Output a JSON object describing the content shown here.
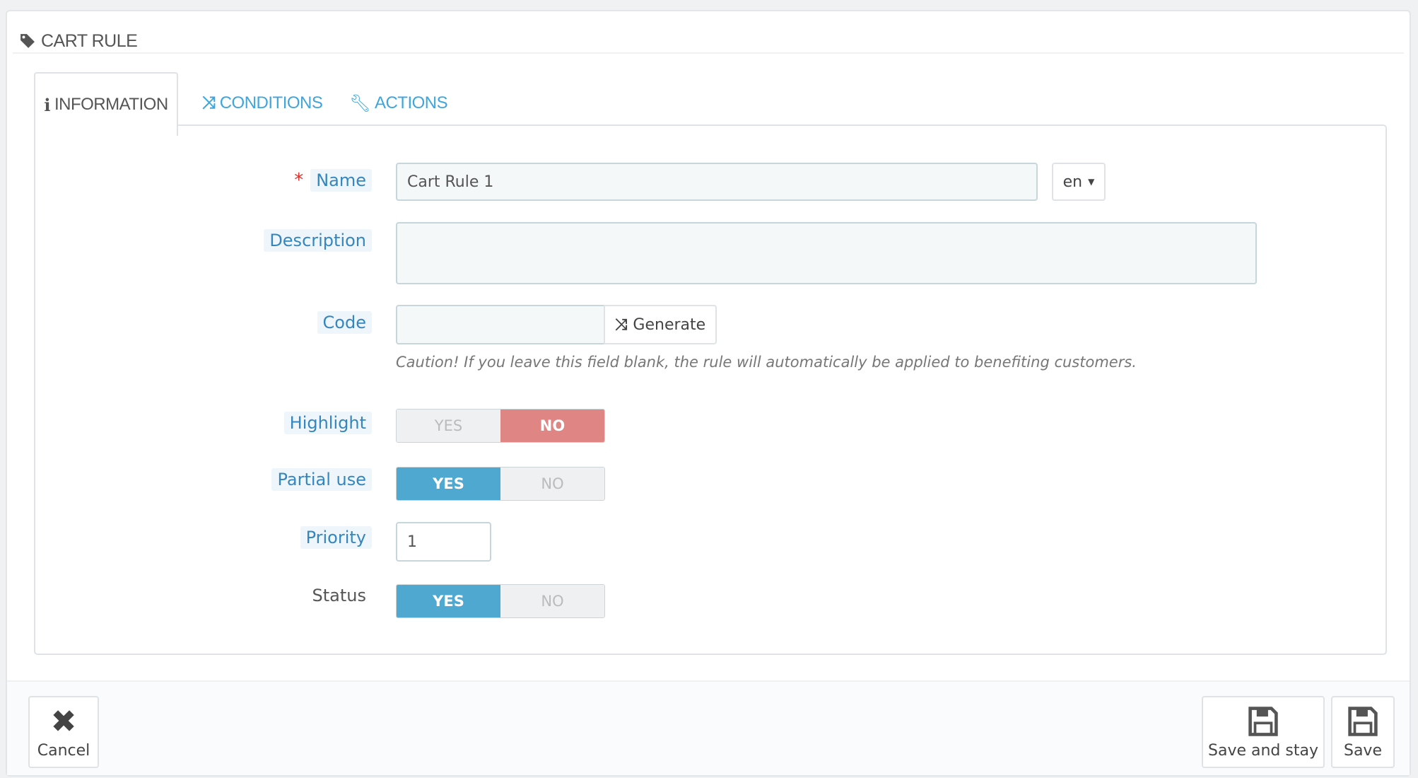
{
  "panel": {
    "title": "CART RULE",
    "title_icon": "tag-icon"
  },
  "tabs": [
    {
      "label": "INFORMATION",
      "icon": "info-icon",
      "active": true
    },
    {
      "label": "CONDITIONS",
      "icon": "shuffle-icon",
      "active": false
    },
    {
      "label": "ACTIONS",
      "icon": "wrench-icon",
      "active": false
    }
  ],
  "form": {
    "name": {
      "label": "Name",
      "required_mark": "*",
      "value": "Cart Rule 1",
      "language": "en"
    },
    "description": {
      "label": "Description",
      "value": ""
    },
    "code": {
      "label": "Code",
      "value": "",
      "generate_label": "Generate",
      "caution": "Caution! If you leave this field blank, the rule will automatically be applied to benefiting customers."
    },
    "highlight": {
      "label": "Highlight",
      "yes": "YES",
      "no": "NO",
      "value": "NO"
    },
    "partial_use": {
      "label": "Partial use",
      "yes": "YES",
      "no": "NO",
      "value": "YES"
    },
    "priority": {
      "label": "Priority",
      "value": "1"
    },
    "status": {
      "label": "Status",
      "yes": "YES",
      "no": "NO",
      "value": "YES"
    }
  },
  "footer": {
    "cancel": "Cancel",
    "save_and_stay": "Save and stay",
    "save": "Save"
  },
  "colors": {
    "accent": "#3ea6dd",
    "toggle_yes": "#4fa8d0",
    "toggle_no": "#df8583",
    "required": "#e0302b"
  }
}
